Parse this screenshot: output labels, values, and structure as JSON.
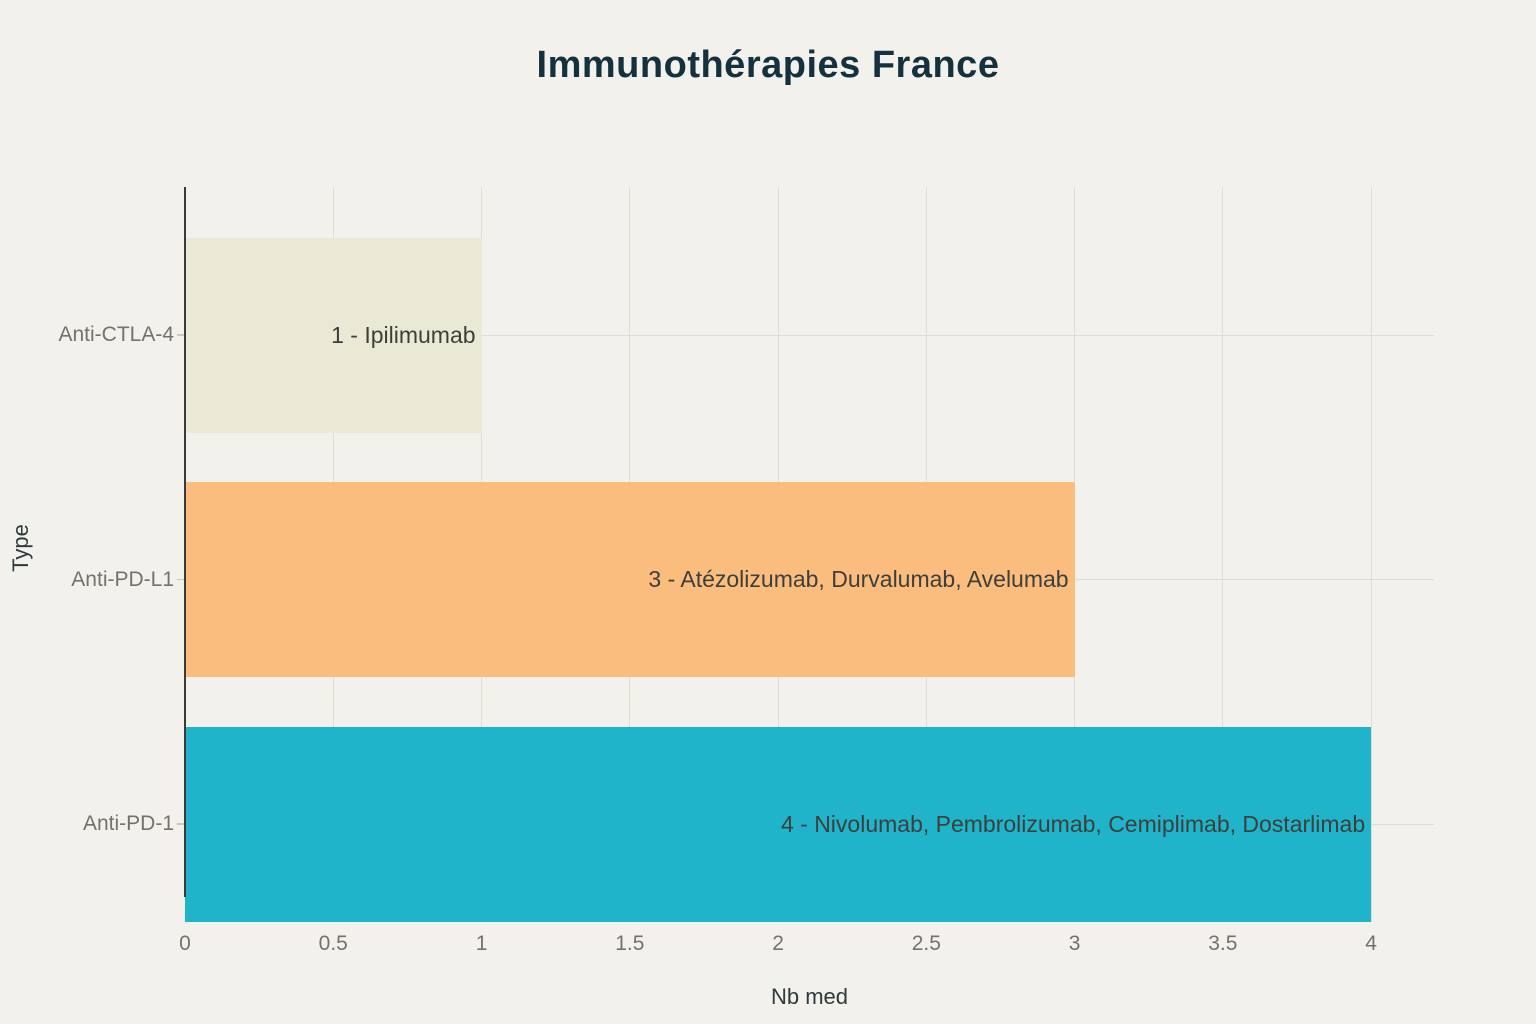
{
  "chart_data": {
    "type": "bar",
    "orientation": "horizontal",
    "title": "Immunothérapies France",
    "xlabel": "Nb med",
    "ylabel": "Type",
    "categories": [
      "Anti-CTLA-4",
      "Anti-PD-L1",
      "Anti-PD-1"
    ],
    "values": [
      1,
      3,
      4
    ],
    "bars": [
      {
        "category": "Anti-CTLA-4",
        "value": 1,
        "label": "1 - Ipilimumab",
        "color": "#EAE9D6"
      },
      {
        "category": "Anti-PD-L1",
        "value": 3,
        "label": "3 - Atézolizumab, Durvalumab, Avelumab",
        "color": "#FABD7E"
      },
      {
        "category": "Anti-PD-1",
        "value": 4,
        "label": "4 - Nivolumab, Pembrolizumab, Cemiplimab, Dostarlimab",
        "color": "#1FB4CA"
      }
    ],
    "x_ticks": [
      0,
      0.5,
      1,
      1.5,
      2,
      2.5,
      3,
      3.5,
      4
    ],
    "x_tick_labels": [
      "0",
      "0.5",
      "1",
      "1.5",
      "2",
      "2.5",
      "3",
      "3.5",
      "4"
    ],
    "xlim": [
      0,
      4.212
    ],
    "grid": true,
    "legend": false,
    "colors": {
      "background": "#F2F1EB",
      "grid": "#DEDED6",
      "category_tick": "#C9C9C2",
      "axis_line": "#3A3A38",
      "tick_label": "#73736C",
      "axis_title": "#2E3A3E",
      "bar_label": "#3E3F3C",
      "title": "#14313D"
    }
  }
}
